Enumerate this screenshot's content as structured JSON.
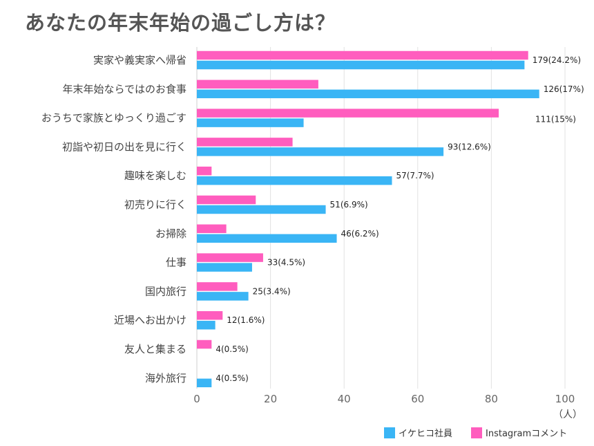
{
  "title": "あなたの年末年始の過ごし方は？",
  "chart_data": {
    "type": "bar",
    "orientation": "horizontal",
    "title": "あなたの年末年始の過ごし方は？",
    "categories": [
      "実家や義実家へ帰省",
      "年末年始ならではのお食事",
      "おうちで家族とゆっくり過ごす",
      "初詣や初日の出を見に行く",
      "趣味を楽しむ",
      "初売りに行く",
      "お掃除",
      "仕事",
      "国内旅行",
      "近場へお出かけ",
      "友人と集まる",
      "海外旅行"
    ],
    "series": [
      {
        "name": "Instagramコメント",
        "color": "#FF5DBE",
        "values": [
          90,
          33,
          82,
          26,
          4,
          16,
          8,
          18,
          11,
          7,
          4,
          0
        ]
      },
      {
        "name": "イケヒコ社員",
        "color": "#3AB5F5",
        "values": [
          89,
          93,
          29,
          67,
          53,
          35,
          38,
          15,
          14,
          5,
          0,
          4
        ]
      }
    ],
    "data_labels": [
      "179(24.2%)",
      "126(17%)",
      "111(15%)",
      "93(12.6%)",
      "57(7.7%)",
      "51(6.9%)",
      "46(6.2%)",
      "33(4.5%)",
      "25(3.4%)",
      "12(1.6%)",
      "4(0.5%)",
      "4(0.5%)"
    ],
    "xlim": [
      0,
      100
    ],
    "xticks": [
      0,
      20,
      40,
      60,
      80,
      100
    ],
    "xlabel": "（人）",
    "grid": true,
    "legend": [
      {
        "label": "イケヒコ社員",
        "color": "#3AB5F5"
      },
      {
        "label": "Instagramコメント",
        "color": "#FF5DBE"
      }
    ]
  }
}
